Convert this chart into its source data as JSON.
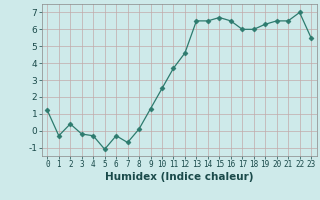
{
  "x": [
    0,
    1,
    2,
    3,
    4,
    5,
    6,
    7,
    8,
    9,
    10,
    11,
    12,
    13,
    14,
    15,
    16,
    17,
    18,
    19,
    20,
    21,
    22,
    23
  ],
  "y": [
    1.2,
    -0.3,
    0.4,
    -0.2,
    -0.3,
    -1.1,
    -0.3,
    -0.7,
    0.1,
    1.3,
    2.5,
    3.7,
    4.6,
    6.5,
    6.5,
    6.7,
    6.5,
    6.0,
    6.0,
    6.3,
    6.5,
    6.5,
    7.0,
    5.5
  ],
  "xlabel": "Humidex (Indice chaleur)",
  "ylim": [
    -1.5,
    7.5
  ],
  "xlim": [
    -0.5,
    23.5
  ],
  "yticks": [
    -1,
    0,
    1,
    2,
    3,
    4,
    5,
    6,
    7
  ],
  "ytick_labels": [
    "-1",
    "0",
    "1",
    "2",
    "3",
    "4",
    "5",
    "6",
    "7"
  ],
  "xticks": [
    0,
    1,
    2,
    3,
    4,
    5,
    6,
    7,
    8,
    9,
    10,
    11,
    12,
    13,
    14,
    15,
    16,
    17,
    18,
    19,
    20,
    21,
    22,
    23
  ],
  "xtick_labels": [
    "0",
    "1",
    "2",
    "3",
    "4",
    "5",
    "6",
    "7",
    "8",
    "9",
    "10",
    "11",
    "12",
    "13",
    "14",
    "15",
    "16",
    "17",
    "18",
    "19",
    "20",
    "21",
    "22",
    "23"
  ],
  "line_color": "#2d7b6e",
  "marker": "D",
  "marker_size": 2.5,
  "bg_color": "#ceeaea",
  "grid_color": "#c2aaaa",
  "axes_bg": "#ceeaea",
  "xlabel_color": "#1a4a4a",
  "xlabel_fontsize": 7.5,
  "tick_fontsize": 5.5,
  "ytick_fontsize": 6.5
}
